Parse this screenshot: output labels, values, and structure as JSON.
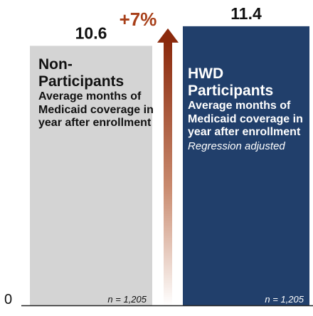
{
  "chart_data": {
    "type": "bar",
    "categories": [
      "Non-Participants",
      "HWD Participants"
    ],
    "values": [
      10.6,
      11.4
    ],
    "value_labels": [
      "10.6",
      "11.4"
    ],
    "descriptions": [
      "Average months of Medicaid coverage in year after enrollment",
      "Average months of Medicaid coverage in year after enrollment"
    ],
    "notes": [
      "",
      "Regression adjusted"
    ],
    "sample_labels": [
      "n = 1,205",
      "n = 1,205"
    ],
    "difference_label": "+7%",
    "baseline_label": "0",
    "ylim": [
      0,
      11.6
    ],
    "colors": {
      "non_participants": "#d4d4d4",
      "participants": "#213f6b",
      "arrow": "#8b2a0d",
      "value_text": "#111111",
      "diff_text": "#a8401a"
    }
  }
}
